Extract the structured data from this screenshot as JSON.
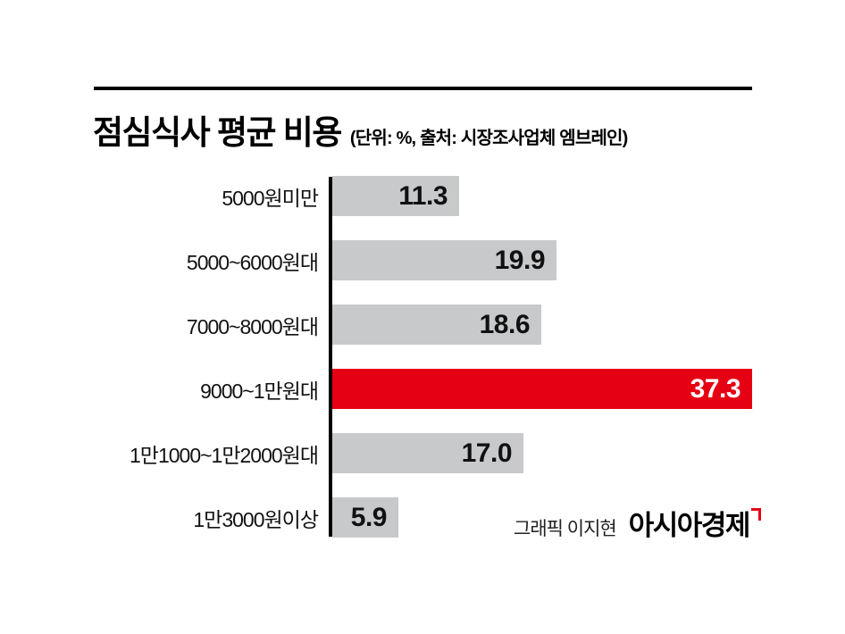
{
  "title": "점심식사 평균 비용",
  "subtitle": "(단위: %, 출처: 시장조사업체 엠브레인)",
  "footer": {
    "credit": "그래픽 이지현",
    "brand": "아시아경제"
  },
  "colors": {
    "bar": "#c8c9cb",
    "highlight": "#e60013",
    "text": "#111111",
    "value_on_highlight": "#ffffff"
  },
  "chart_data": {
    "type": "bar",
    "orientation": "horizontal",
    "title": "점심식사 평균 비용",
    "unit": "%",
    "source": "시장조사업체 엠브레인",
    "categories": [
      "5000원미만",
      "5000~6000원대",
      "7000~8000원대",
      "9000~1만원대",
      "1만1000~1만2000원대",
      "1만3000원이상"
    ],
    "values": [
      11.3,
      19.9,
      18.6,
      37.3,
      17.0,
      5.9
    ],
    "value_labels": [
      "11.3",
      "19.9",
      "18.6",
      "37.3",
      "17.0",
      "5.9"
    ],
    "highlight_index": 3,
    "xlim": [
      0,
      37.3
    ],
    "grid": false,
    "legend": false
  }
}
